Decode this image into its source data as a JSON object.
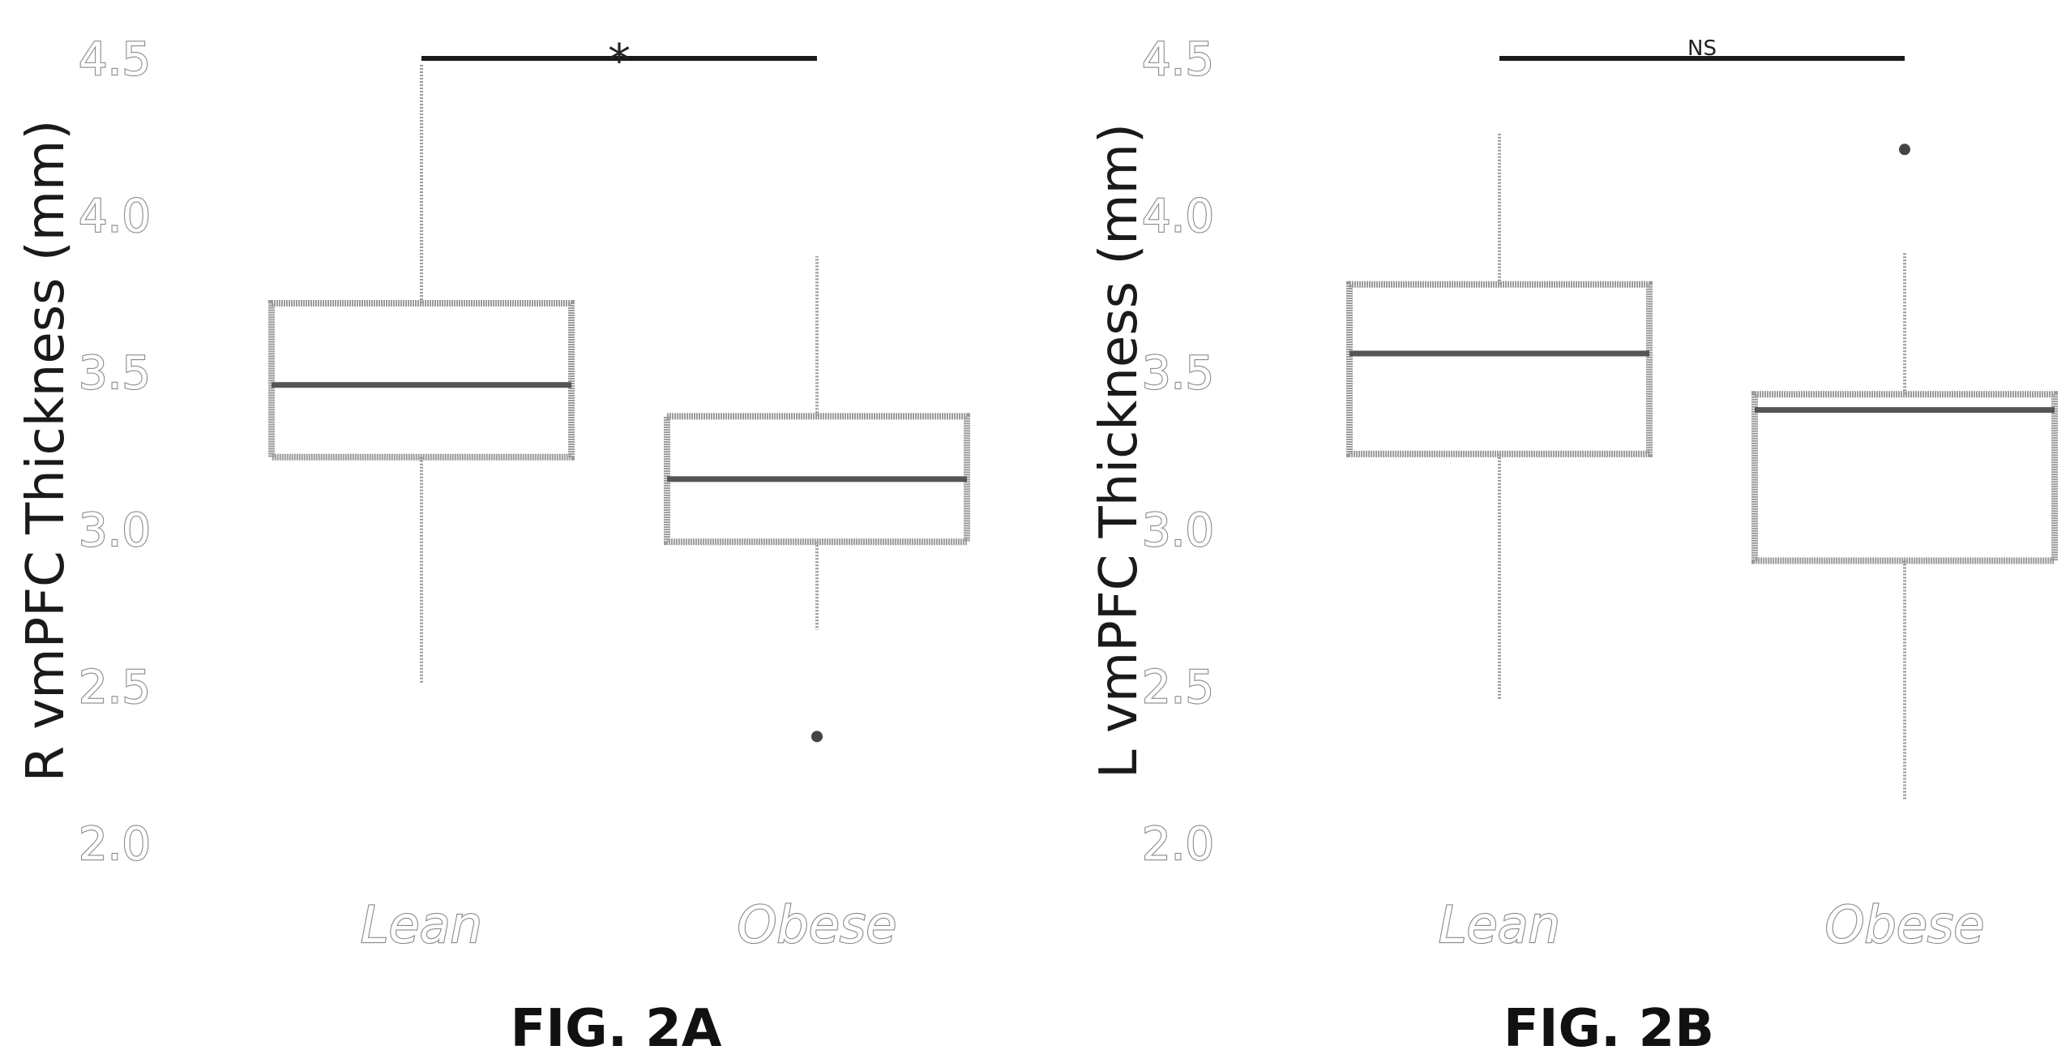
{
  "chart_data": [
    {
      "type": "box",
      "caption": "FIG. 2A",
      "ylabel": "R vmPFC Thickness (mm)",
      "ylim": [
        2.0,
        4.5
      ],
      "yticks": [
        "2.0",
        "2.5",
        "3.0",
        "3.5",
        "4.0",
        "4.5"
      ],
      "categories": [
        "Lean",
        "Obese"
      ],
      "boxes": [
        {
          "category": "Lean",
          "whisker_low": 2.51,
          "q1": 3.23,
          "median": 3.46,
          "q3": 3.72,
          "whisker_high": 4.48,
          "outliers": []
        },
        {
          "category": "Obese",
          "whisker_low": 2.68,
          "q1": 2.96,
          "median": 3.16,
          "q3": 3.36,
          "whisker_high": 3.87,
          "outliers": [
            2.34
          ]
        }
      ],
      "significance": {
        "label": "*",
        "from": "Lean",
        "to": "Obese",
        "y": 4.5
      }
    },
    {
      "type": "box",
      "caption": "FIG. 2B",
      "ylabel": "L vmPFC Thickness (mm)",
      "ylim": [
        2.0,
        4.5
      ],
      "yticks": [
        "2.0",
        "2.5",
        "3.0",
        "3.5",
        "4.0",
        "4.5"
      ],
      "categories": [
        "Lean",
        "Obese"
      ],
      "boxes": [
        {
          "category": "Lean",
          "whisker_low": 2.46,
          "q1": 3.24,
          "median": 3.56,
          "q3": 3.78,
          "whisker_high": 4.26,
          "outliers": []
        },
        {
          "category": "Obese",
          "whisker_low": 2.14,
          "q1": 2.9,
          "median": 3.38,
          "q3": 3.43,
          "whisker_high": 3.88,
          "outliers": [
            4.21
          ]
        }
      ],
      "significance": {
        "label": "NS",
        "from": "Lean",
        "to": "Obese",
        "y": 4.5
      }
    }
  ]
}
